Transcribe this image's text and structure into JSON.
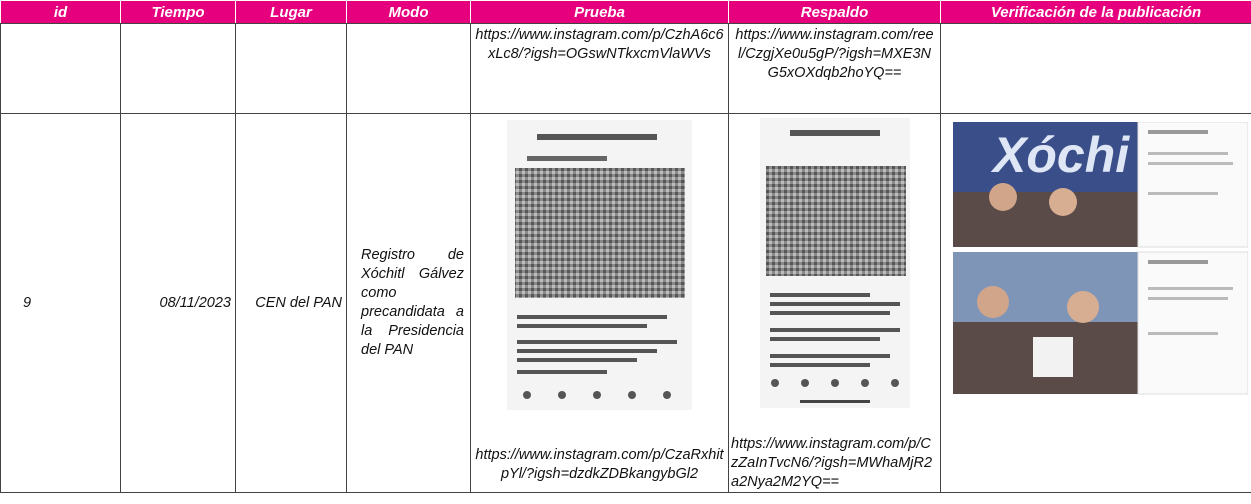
{
  "table": {
    "header": [
      "id",
      "Tiempo",
      "Lugar",
      "Modo",
      "Prueba",
      "Respaldo",
      "Verificación de la publicación"
    ],
    "rows": [
      {
        "prueba": "https://www.instagram.com/p/CzhA6c6xLc8/?igsh=OGswNTkxcmVlaWVs",
        "respaldo": "https://www.instagram.com/reel/CzgjXe0u5gP/?igsh=MXE3NG5xOXdqb2hoYQ=="
      },
      {
        "id": "9",
        "tiempo": "08/11/2023",
        "lugar": "CEN del PAN",
        "modo": "Registro de Xóchitl Gálvez como precandidata a la Presidencia del PAN",
        "prueba": "https://www.instagram.com/p/CzaRxhitpYl/?igsh=dzdkZDBkangybGl2",
        "respaldo": "https://www.instagram.com/p/CzZaInTvcN6/?igsh=MWhaMjR2a2Nya2M2YQ=="
      }
    ]
  }
}
